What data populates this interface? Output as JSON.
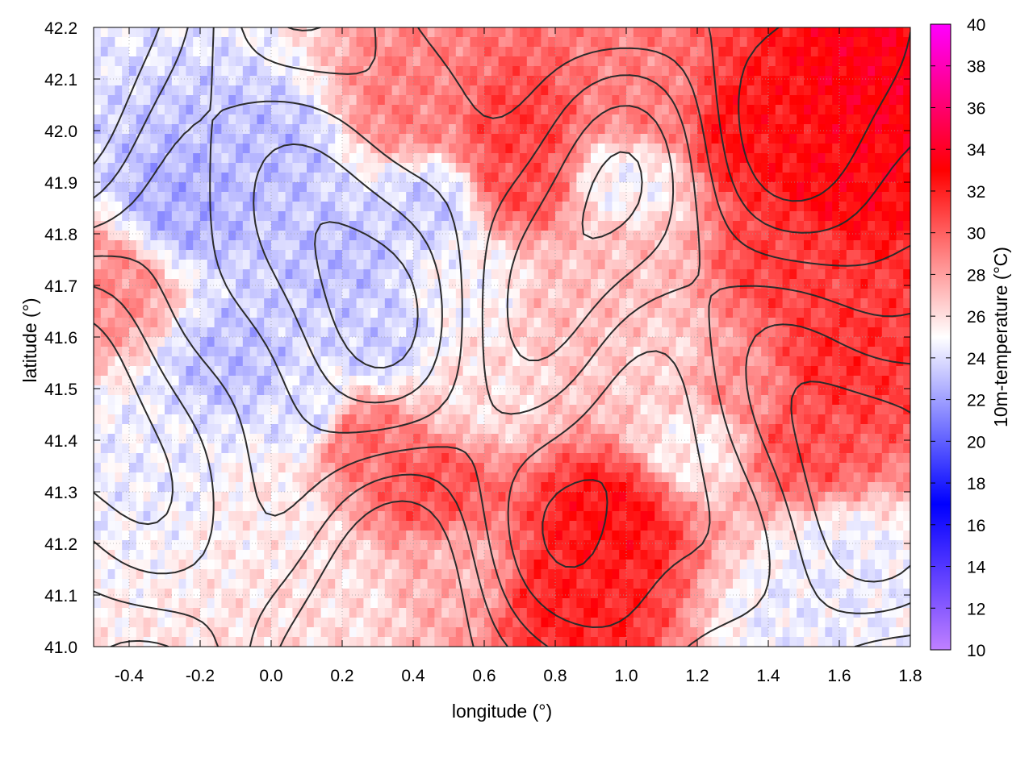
{
  "chart_data": {
    "type": "heatmap",
    "xlabel": "longitude (°)",
    "ylabel": "latitude (°)",
    "colorbar_label": "10m-temperature (°C)",
    "xlim": [
      -0.5,
      1.8
    ],
    "ylim": [
      41.0,
      42.2
    ],
    "clim": [
      10,
      40
    ],
    "x_ticks": [
      -0.4,
      -0.2,
      0.0,
      0.2,
      0.4,
      0.6,
      0.8,
      1.0,
      1.2,
      1.4,
      1.6,
      1.8
    ],
    "x_tick_labels": [
      "-0.4",
      "-0.2",
      "0.0",
      "0.2",
      "0.4",
      "0.6",
      "0.8",
      "1.0",
      "1.2",
      "1.4",
      "1.6",
      "1.8"
    ],
    "y_ticks": [
      41.0,
      41.1,
      41.2,
      41.3,
      41.4,
      41.5,
      41.6,
      41.7,
      41.8,
      41.9,
      42.0,
      42.1,
      42.2
    ],
    "y_tick_labels": [
      "41.0",
      "41.1",
      "41.2",
      "41.3",
      "41.4",
      "41.5",
      "41.6",
      "41.7",
      "41.8",
      "41.9",
      "42.0",
      "42.1",
      "42.2"
    ],
    "colorbar_ticks": [
      10,
      12,
      14,
      16,
      18,
      20,
      22,
      24,
      26,
      28,
      30,
      32,
      34,
      36,
      38,
      40
    ],
    "colorbar_tick_labels": [
      "10",
      "12",
      "14",
      "16",
      "18",
      "20",
      "22",
      "24",
      "26",
      "28",
      "30",
      "32",
      "34",
      "36",
      "38",
      "40"
    ],
    "colormap": [
      {
        "value": 10,
        "color": "#c080ff"
      },
      {
        "value": 17,
        "color": "#0000ff"
      },
      {
        "value": 25,
        "color": "#ffffff"
      },
      {
        "value": 33,
        "color": "#ff0000"
      },
      {
        "value": 40,
        "color": "#ff00ff"
      }
    ],
    "grid": true,
    "contours": true,
    "regions": [
      {
        "lon": -0.25,
        "lat": 41.85,
        "temp": 22.5
      },
      {
        "lon": 0.0,
        "lat": 41.95,
        "temp": 23.0
      },
      {
        "lon": 0.2,
        "lat": 41.75,
        "temp": 23.0
      },
      {
        "lon": 0.45,
        "lat": 41.85,
        "temp": 23.5
      },
      {
        "lon": -0.1,
        "lat": 41.55,
        "temp": 23.0
      },
      {
        "lon": 0.3,
        "lat": 41.6,
        "temp": 23.5
      },
      {
        "lon": 0.1,
        "lat": 41.45,
        "temp": 24.0
      },
      {
        "lon": -0.3,
        "lat": 41.35,
        "temp": 24.5
      },
      {
        "lon": 0.0,
        "lat": 41.25,
        "temp": 25.5
      },
      {
        "lon": 0.2,
        "lat": 41.1,
        "temp": 26.0
      },
      {
        "lon": 0.5,
        "lat": 41.15,
        "temp": 27.5
      },
      {
        "lon": 0.6,
        "lat": 41.5,
        "temp": 26.0
      },
      {
        "lon": 0.85,
        "lat": 41.65,
        "temp": 27.0
      },
      {
        "lon": 1.0,
        "lat": 41.75,
        "temp": 27.0
      },
      {
        "lon": 1.1,
        "lat": 41.55,
        "temp": 26.5
      },
      {
        "lon": 1.2,
        "lat": 41.4,
        "temp": 25.5
      },
      {
        "lon": 1.6,
        "lat": 41.15,
        "temp": 24.5
      },
      {
        "lon": 1.5,
        "lat": 41.05,
        "temp": 24.5
      },
      {
        "lon": 0.95,
        "lat": 41.25,
        "temp": 32.5
      },
      {
        "lon": 0.85,
        "lat": 41.1,
        "temp": 32.0
      },
      {
        "lon": 0.45,
        "lat": 41.3,
        "temp": 30.5
      },
      {
        "lon": 0.25,
        "lat": 41.4,
        "temp": 29.5
      },
      {
        "lon": 0.7,
        "lat": 42.0,
        "temp": 31.0
      },
      {
        "lon": 0.7,
        "lat": 41.9,
        "temp": 30.5
      },
      {
        "lon": 1.05,
        "lat": 42.05,
        "temp": 29.0
      },
      {
        "lon": 1.35,
        "lat": 42.0,
        "temp": 32.5
      },
      {
        "lon": 1.6,
        "lat": 41.9,
        "temp": 33.0
      },
      {
        "lon": 1.7,
        "lat": 42.1,
        "temp": 33.5
      },
      {
        "lon": 1.45,
        "lat": 41.75,
        "temp": 31.0
      },
      {
        "lon": 1.6,
        "lat": 41.55,
        "temp": 31.5
      },
      {
        "lon": 1.5,
        "lat": 41.4,
        "temp": 30.5
      },
      {
        "lon": 1.3,
        "lat": 41.5,
        "temp": 28.5
      },
      {
        "lon": 0.4,
        "lat": 42.05,
        "temp": 29.0
      },
      {
        "lon": -0.45,
        "lat": 41.7,
        "temp": 28.5
      },
      {
        "lon": 1.0,
        "lat": 41.9,
        "temp": 25.0
      },
      {
        "lon": 0.55,
        "lat": 41.7,
        "temp": 25.0
      }
    ]
  }
}
